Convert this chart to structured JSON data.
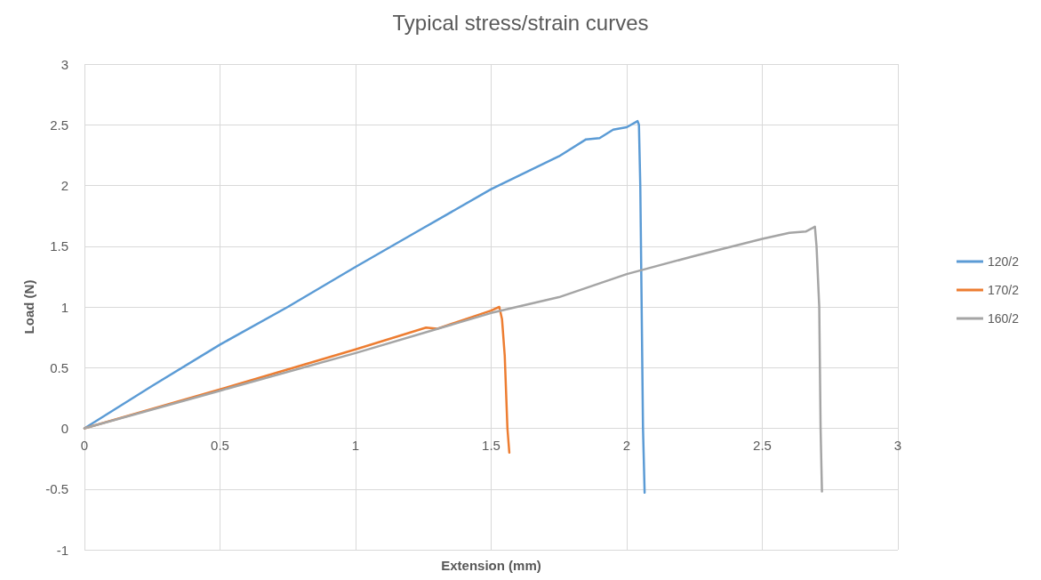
{
  "chart_data": {
    "type": "line",
    "title": "Typical stress/strain curves",
    "xlabel": "Extension (mm)",
    "ylabel": "Load (N)",
    "xlim": [
      0,
      3
    ],
    "xticks": [
      0,
      0.5,
      1,
      1.5,
      2,
      2.5,
      3
    ],
    "ylim": [
      -1,
      3
    ],
    "yticks": [
      -1,
      -0.5,
      0,
      0.5,
      1,
      1.5,
      2,
      2.5,
      3
    ],
    "grid": true,
    "legend": "right",
    "marker": "none",
    "line_style": "solid",
    "series": [
      {
        "name": "120/2",
        "color": "#5b9bd5",
        "x": [
          0,
          0.25,
          0.5,
          0.75,
          1,
          1.25,
          1.5,
          1.75,
          1.85,
          1.9,
          1.95,
          2.0,
          2.04,
          2.045,
          2.05,
          2.055,
          2.06,
          2.066
        ],
        "values": [
          0,
          0.35,
          0.69,
          1.0,
          1.33,
          1.65,
          1.97,
          2.24,
          2.38,
          2.39,
          2.46,
          2.48,
          2.53,
          2.5,
          2.0,
          1.0,
          0,
          -0.53
        ]
      },
      {
        "name": "170/2",
        "color": "#ed7d31",
        "x": [
          0,
          0.5,
          1,
          1.26,
          1.3,
          1.5,
          1.53,
          1.54,
          1.55,
          1.56,
          1.567
        ],
        "values": [
          0,
          0.32,
          0.65,
          0.83,
          0.82,
          0.97,
          1.0,
          0.9,
          0.6,
          0,
          -0.2
        ]
      },
      {
        "name": "160/2",
        "color": "#a5a5a5",
        "x": [
          0,
          0.5,
          1,
          1.5,
          1.75,
          2,
          2.25,
          2.5,
          2.6,
          2.66,
          2.694,
          2.7,
          2.71,
          2.715,
          2.72
        ],
        "values": [
          0,
          0.31,
          0.62,
          0.95,
          1.08,
          1.27,
          1.42,
          1.56,
          1.61,
          1.62,
          1.66,
          1.5,
          1.0,
          0,
          -0.52
        ]
      }
    ]
  }
}
